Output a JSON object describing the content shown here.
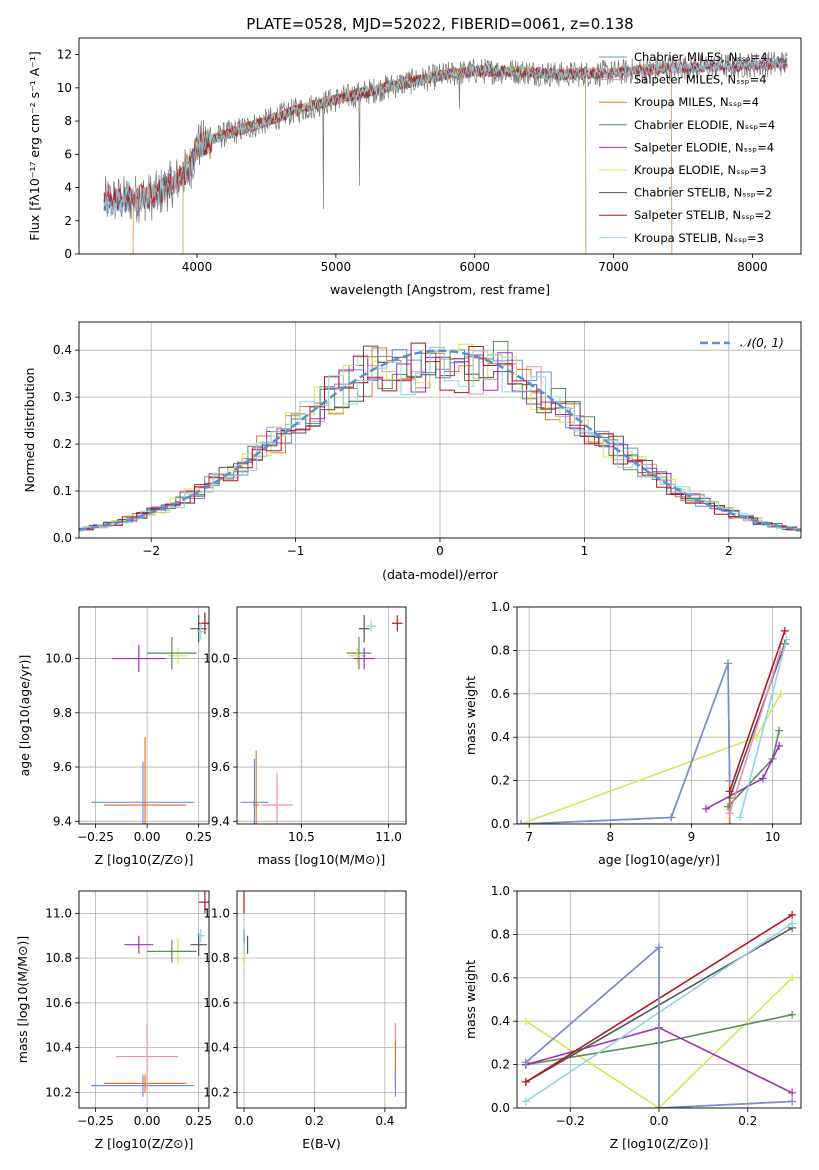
{
  "colors": {
    "Chabrier MILES": "#6f8fe0",
    "Salpeter MILES": "#e88fb4",
    "Kroupa MILES": "#dd7a2e",
    "Chabrier ELODIE": "#5f8a5f",
    "Salpeter ELODIE": "#a030b8",
    "Kroupa ELODIE": "#d2e85a",
    "Chabrier STELIB": "#555555",
    "Salpeter STELIB": "#b8141e",
    "Kroupa STELIB": "#8ad8e0",
    "gauss": "#5a8fd8"
  },
  "chart_data": [
    {
      "id": "spectrum",
      "type": "line",
      "title": "PLATE=0528, MJD=52022, FIBERID=0061, z=0.138",
      "xlabel": "wavelength [Angstrom, rest frame]",
      "ylabel": "Flux [fλ10⁻¹⁷ erg cm⁻² s⁻¹ A⁻¹]",
      "xlim": [
        3150,
        8350
      ],
      "ylim": [
        0,
        13
      ],
      "xticks": [
        4000,
        5000,
        6000,
        7000,
        8000
      ],
      "yticks": [
        0,
        2,
        4,
        6,
        8,
        10,
        12
      ],
      "legend": "right",
      "legend_entries": [
        "Chabrier MILES, N_SSP=4",
        "Salpeter MILES, N_SSP=4",
        "Kroupa MILES, N_SSP=4",
        "Chabrier ELODIE, N_SSP=4",
        "Salpeter ELODIE, N_SSP=4",
        "Kroupa ELODIE, N_SSP=3",
        "Chabrier STELIB, N_SSP=2",
        "Salpeter STELIB, N_SSP=2",
        "Kroupa STELIB, N_SSP=3"
      ],
      "continuum": [
        [
          3330,
          3.2
        ],
        [
          3500,
          3.3
        ],
        [
          3700,
          3.5
        ],
        [
          3850,
          4.4
        ],
        [
          3950,
          5.2
        ],
        [
          4000,
          6.5
        ],
        [
          4200,
          7.2
        ],
        [
          4400,
          7.7
        ],
        [
          4700,
          8.6
        ],
        [
          5000,
          9.3
        ],
        [
          5200,
          9.7
        ],
        [
          5500,
          10.3
        ],
        [
          5800,
          10.8
        ],
        [
          6000,
          11.0
        ],
        [
          6300,
          11.0
        ],
        [
          6600,
          10.8
        ],
        [
          7000,
          10.9
        ],
        [
          7400,
          11.2
        ],
        [
          7800,
          11.3
        ],
        [
          8250,
          11.5
        ]
      ]
    },
    {
      "id": "residuals",
      "type": "histogram",
      "xlabel": "(data-model)/error",
      "ylabel": "Normed distribution",
      "xlim": [
        -2.5,
        2.5
      ],
      "ylim": [
        0,
        0.46
      ],
      "xticks": [
        -2,
        -1,
        0,
        1,
        2
      ],
      "yticks": [
        0.0,
        0.1,
        0.2,
        0.3,
        0.4
      ],
      "grid": true,
      "legend": "top-right",
      "gauss_label": "𝒩(0, 1)",
      "bin_width": 0.1
    },
    {
      "id": "age_vs_Z",
      "type": "errorbar",
      "xlabel": "Z [log10(Z/Z⊙)]",
      "ylabel": "age [log10(age/yr)]",
      "xlim": [
        -0.33,
        0.3
      ],
      "ylim": [
        9.39,
        10.19
      ],
      "xticks": [
        -0.25,
        0.0,
        0.25
      ],
      "yticks": [
        9.4,
        9.6,
        9.8,
        10.0
      ],
      "grid": true,
      "points": [
        {
          "model": "Chabrier MILES",
          "x": -0.02,
          "y": 9.47,
          "xerr": 0.25,
          "yerr": 0.15
        },
        {
          "model": "Kroupa MILES",
          "x": -0.01,
          "y": 9.46,
          "xerr": 0.2,
          "yerr": 0.25
        },
        {
          "model": "Salpeter ELODIE",
          "x": -0.04,
          "y": 10.0,
          "xerr": 0.13,
          "yerr": 0.05
        },
        {
          "model": "Kroupa ELODIE",
          "x": 0.15,
          "y": 10.01,
          "xerr": 0.05,
          "yerr": 0.03
        },
        {
          "model": "Chabrier ELODIE",
          "x": 0.12,
          "y": 10.02,
          "xerr": 0.12,
          "yerr": 0.06
        },
        {
          "model": "Chabrier STELIB",
          "x": 0.25,
          "y": 10.11,
          "xerr": 0.04,
          "yerr": 0.05
        },
        {
          "model": "Salpeter STELIB",
          "x": 0.28,
          "y": 10.13,
          "xerr": 0.03,
          "yerr": 0.04
        },
        {
          "model": "Kroupa STELIB",
          "x": 0.26,
          "y": 10.1,
          "xerr": 0.02,
          "yerr": 0.03
        }
      ]
    },
    {
      "id": "age_vs_mass",
      "type": "errorbar",
      "xlabel": "mass [log10(M/M⊙)]",
      "ylabel": "",
      "xlim": [
        10.13,
        11.1
      ],
      "ylim": [
        9.39,
        10.19
      ],
      "xticks": [
        10.5,
        11.0
      ],
      "yticks": [
        9.4,
        9.6,
        9.8,
        10.0
      ],
      "grid": true,
      "points": [
        {
          "model": "Chabrier MILES",
          "x": 10.23,
          "y": 9.47,
          "xerr": 0.08,
          "yerr": 0.16
        },
        {
          "model": "Kroupa MILES",
          "x": 10.24,
          "y": 9.46,
          "xerr": 0.02,
          "yerr": 0.2
        },
        {
          "model": "Salpeter MILES",
          "x": 10.36,
          "y": 9.46,
          "xerr": 0.09,
          "yerr": 0.12
        },
        {
          "model": "Chabrier ELODIE",
          "x": 10.83,
          "y": 10.02,
          "xerr": 0.07,
          "yerr": 0.06
        },
        {
          "model": "Kroupa ELODIE",
          "x": 10.82,
          "y": 10.01,
          "xerr": 0.05,
          "yerr": 0.03
        },
        {
          "model": "Salpeter ELODIE",
          "x": 10.86,
          "y": 10.0,
          "xerr": 0.06,
          "yerr": 0.04
        },
        {
          "model": "Chabrier STELIB",
          "x": 10.86,
          "y": 10.11,
          "xerr": 0.03,
          "yerr": 0.05
        },
        {
          "model": "Kroupa STELIB",
          "x": 10.9,
          "y": 10.12,
          "xerr": 0.03,
          "yerr": 0.02
        },
        {
          "model": "Salpeter STELIB",
          "x": 11.05,
          "y": 10.13,
          "xerr": 0.03,
          "yerr": 0.03
        }
      ]
    },
    {
      "id": "weight_vs_age",
      "type": "line",
      "xlabel": "age [log10(age/yr)]",
      "ylabel": "mass weight",
      "xlim": [
        6.85,
        10.35
      ],
      "ylim": [
        0,
        1.0
      ],
      "xticks": [
        7,
        8,
        9,
        10
      ],
      "yticks": [
        0.0,
        0.2,
        0.4,
        0.6,
        0.8,
        1.0
      ],
      "grid": true,
      "series": [
        {
          "model": "Kroupa ELODIE",
          "points": [
            [
              6.9,
              0.0
            ],
            [
              9.8,
              0.4
            ],
            [
              10.1,
              0.6
            ]
          ]
        },
        {
          "model": "Kroupa MILES",
          "points": [
            [
              6.9,
              0.0
            ],
            [
              8.75,
              0.03
            ],
            [
              9.45,
              0.74
            ],
            [
              9.47,
              0.2
            ],
            [
              9.47,
              0.0
            ]
          ]
        },
        {
          "model": "Chabrier MILES",
          "points": [
            [
              6.9,
              0.0
            ],
            [
              8.75,
              0.03
            ],
            [
              9.45,
              0.74
            ],
            [
              9.47,
              0.2
            ]
          ]
        },
        {
          "model": "Chabrier ELODIE",
          "points": [
            [
              9.45,
              0.08
            ],
            [
              10.0,
              0.3
            ],
            [
              10.08,
              0.43
            ]
          ]
        },
        {
          "model": "Salpeter ELODIE",
          "points": [
            [
              9.18,
              0.07
            ],
            [
              9.88,
              0.21
            ],
            [
              10.08,
              0.36
            ]
          ]
        },
        {
          "model": "Chabrier STELIB",
          "points": [
            [
              9.47,
              0.12
            ],
            [
              10.15,
              0.83
            ]
          ]
        },
        {
          "model": "Salpeter STELIB",
          "points": [
            [
              9.47,
              0.15
            ],
            [
              10.15,
              0.89
            ]
          ]
        },
        {
          "model": "Kroupa STELIB",
          "points": [
            [
              9.6,
              0.03
            ],
            [
              10.17,
              0.85
            ]
          ]
        },
        {
          "model": "Salpeter MILES",
          "points": [
            [
              9.47,
              0.05
            ],
            [
              10.1,
              0.8
            ]
          ]
        }
      ]
    },
    {
      "id": "mass_vs_Z",
      "type": "errorbar",
      "xlabel": "Z [log10(Z/Z⊙)]",
      "ylabel": "mass [log10(M/M⊙)]",
      "xlim": [
        -0.33,
        0.3
      ],
      "ylim": [
        10.13,
        11.1
      ],
      "xticks": [
        -0.25,
        0.0,
        0.25
      ],
      "yticks": [
        10.2,
        10.4,
        10.6,
        10.8,
        11.0
      ],
      "grid": true,
      "points": [
        {
          "model": "Chabrier MILES",
          "x": -0.02,
          "y": 10.23,
          "xerr": 0.25,
          "yerr": 0.05
        },
        {
          "model": "Kroupa MILES",
          "x": -0.01,
          "y": 10.24,
          "xerr": 0.2,
          "yerr": 0.04
        },
        {
          "model": "Salpeter MILES",
          "x": 0.0,
          "y": 10.36,
          "xerr": 0.15,
          "yerr": 0.15
        },
        {
          "model": "Salpeter ELODIE",
          "x": -0.04,
          "y": 10.86,
          "xerr": 0.07,
          "yerr": 0.04
        },
        {
          "model": "Kroupa ELODIE",
          "x": 0.15,
          "y": 10.83,
          "xerr": 0.05,
          "yerr": 0.06
        },
        {
          "model": "Chabrier ELODIE",
          "x": 0.12,
          "y": 10.83,
          "xerr": 0.12,
          "yerr": 0.05
        },
        {
          "model": "Chabrier STELIB",
          "x": 0.25,
          "y": 10.86,
          "xerr": 0.04,
          "yerr": 0.05
        },
        {
          "model": "Kroupa STELIB",
          "x": 0.26,
          "y": 10.9,
          "xerr": 0.02,
          "yerr": 0.03
        },
        {
          "model": "Salpeter STELIB",
          "x": 0.28,
          "y": 11.05,
          "xerr": 0.03,
          "yerr": 0.05
        }
      ]
    },
    {
      "id": "mass_vs_ebv",
      "type": "errorbar",
      "xlabel": "E(B-V)",
      "ylabel": "",
      "xlim": [
        -0.02,
        0.46
      ],
      "ylim": [
        10.13,
        11.1
      ],
      "xticks": [
        0.0,
        0.2,
        0.4
      ],
      "yticks": [
        10.2,
        10.4,
        10.6,
        10.8,
        11.0
      ],
      "grid": true,
      "points": [
        {
          "model": "Salpeter STELIB",
          "x": 0.0,
          "y": 11.05,
          "xerr": 0,
          "yerr": 0.05
        },
        {
          "model": "Chabrier STELIB",
          "x": 0.01,
          "y": 10.86,
          "xerr": 0,
          "yerr": 0.04
        },
        {
          "model": "Chabrier ELODIE",
          "x": 0.0,
          "y": 10.83,
          "xerr": 0,
          "yerr": 0.06
        },
        {
          "model": "Kroupa ELODIE",
          "x": 0.0,
          "y": 10.83,
          "xerr": 0,
          "yerr": 0.07
        },
        {
          "model": "Kroupa STELIB",
          "x": 0.0,
          "y": 10.87,
          "xerr": 0,
          "yerr": 0.05
        },
        {
          "model": "Chabrier MILES",
          "x": 0.0,
          "y": 10.9,
          "xerr": 0,
          "yerr": 0.03
        },
        {
          "model": "Salpeter MILES",
          "x": 0.43,
          "y": 10.36,
          "xerr": 0,
          "yerr": 0.15
        },
        {
          "model": "Kroupa MILES",
          "x": 0.43,
          "y": 10.33,
          "xerr": 0,
          "yerr": 0.1
        },
        {
          "model": "Chabrier MILES",
          "x": 0.43,
          "y": 10.24,
          "xerr": 0,
          "yerr": 0.06
        }
      ]
    },
    {
      "id": "weight_vs_Z",
      "type": "line",
      "xlabel": "Z [log10(Z/Z⊙)]",
      "ylabel": "mass weight",
      "xlim": [
        -0.32,
        0.32
      ],
      "ylim": [
        0,
        1.0
      ],
      "xticks": [
        -0.2,
        0.0,
        0.2
      ],
      "yticks": [
        0.0,
        0.2,
        0.4,
        0.6,
        0.8,
        1.0
      ],
      "grid": true,
      "series": [
        {
          "model": "Kroupa ELODIE",
          "points": [
            [
              -0.3,
              0.4
            ],
            [
              0.0,
              0.0
            ],
            [
              0.3,
              0.6
            ]
          ]
        },
        {
          "model": "Chabrier ELODIE",
          "points": [
            [
              -0.3,
              0.2
            ],
            [
              0.0,
              0.3
            ],
            [
              0.3,
              0.43
            ]
          ]
        },
        {
          "model": "Salpeter ELODIE",
          "points": [
            [
              -0.3,
              0.2
            ],
            [
              0.0,
              0.37
            ],
            [
              0.3,
              0.07
            ]
          ]
        },
        {
          "model": "Chabrier STELIB",
          "points": [
            [
              -0.3,
              0.12
            ],
            [
              0.3,
              0.83
            ]
          ]
        },
        {
          "model": "Salpeter STELIB",
          "points": [
            [
              -0.3,
              0.12
            ],
            [
              0.3,
              0.89
            ]
          ]
        },
        {
          "model": "Kroupa STELIB",
          "points": [
            [
              -0.3,
              0.03
            ],
            [
              0.3,
              0.85
            ]
          ]
        },
        {
          "model": "Kroupa MILES",
          "points": [
            [
              -0.3,
              0.21
            ],
            [
              0.0,
              0.74
            ],
            [
              0.0,
              0.0
            ],
            [
              0.3,
              0.03
            ]
          ]
        },
        {
          "model": "Chabrier MILES",
          "points": [
            [
              -0.3,
              0.21
            ],
            [
              0.0,
              0.74
            ],
            [
              0.0,
              0.0
            ],
            [
              0.3,
              0.03
            ]
          ]
        }
      ]
    }
  ]
}
